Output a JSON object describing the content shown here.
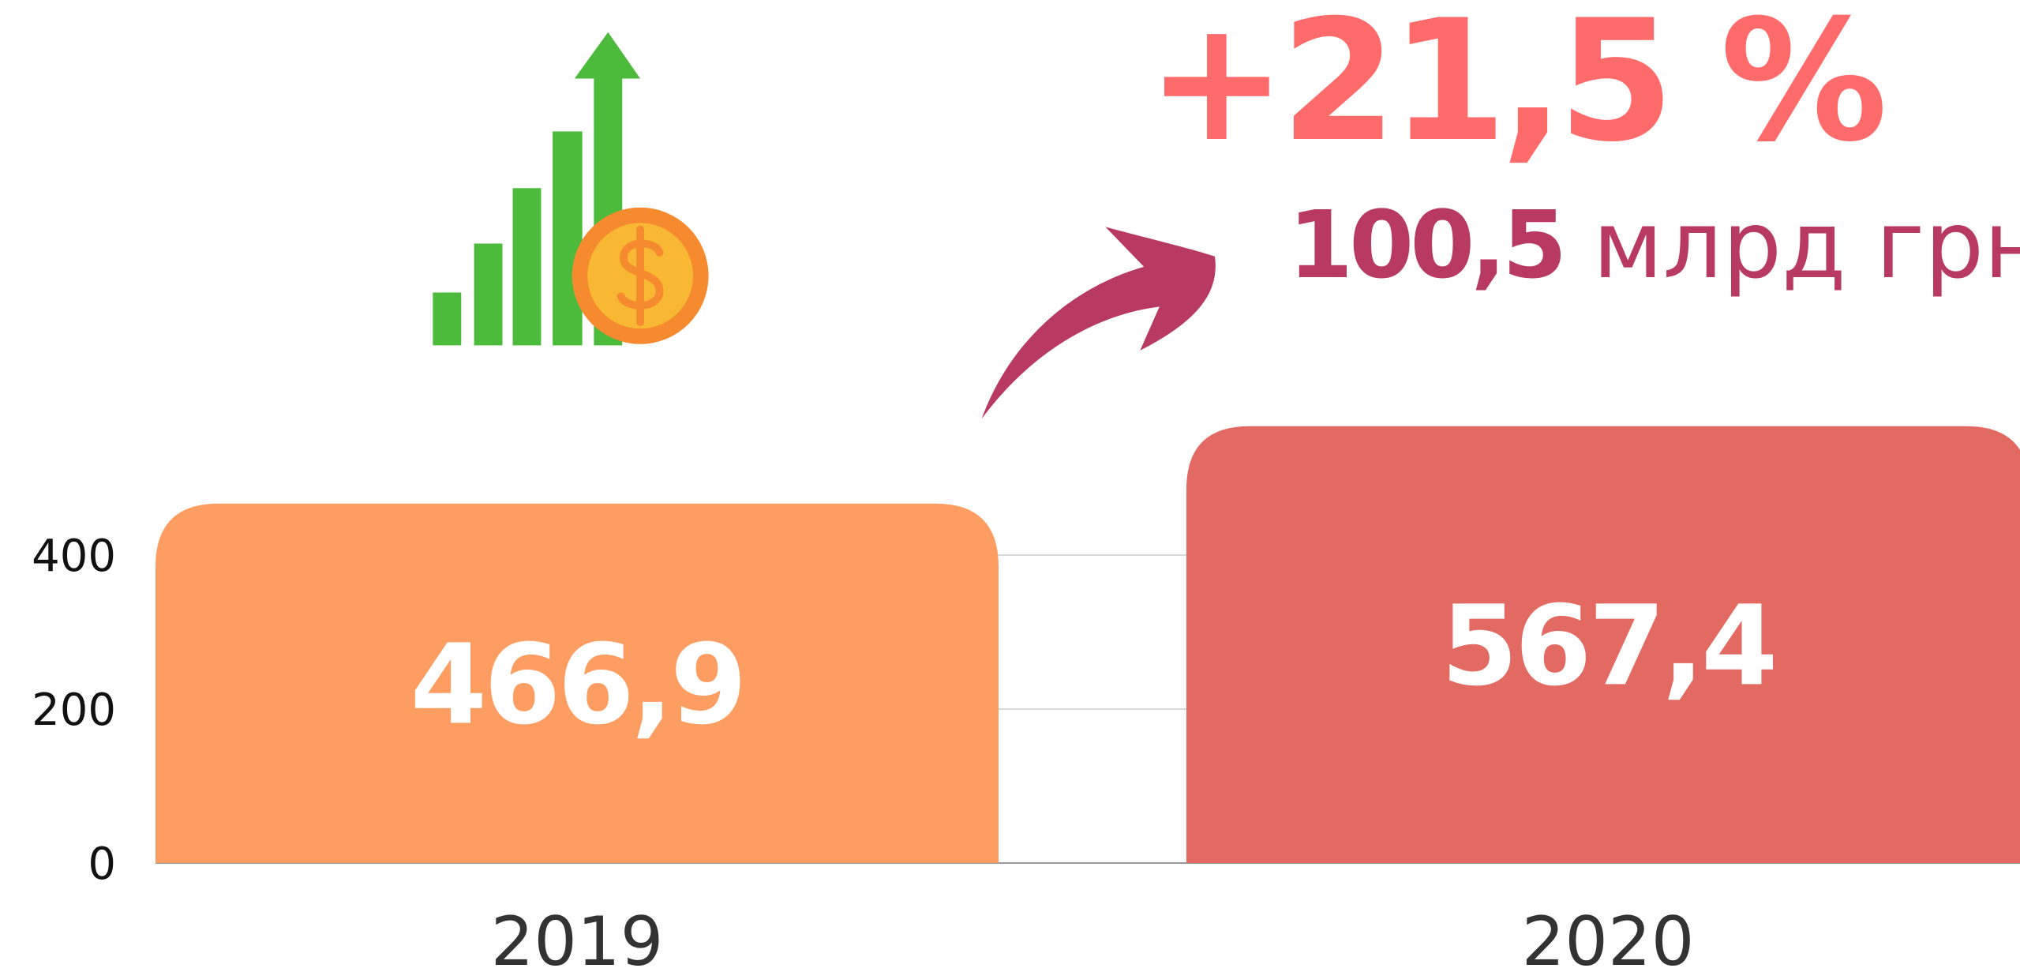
{
  "chart_data": {
    "type": "bar",
    "categories": [
      "2019",
      "2020"
    ],
    "values": [
      466.9,
      567.4
    ],
    "value_labels": [
      "466,9",
      "567,4"
    ],
    "colors": [
      "#fe9d62",
      "#e26a62"
    ],
    "ylim": [
      0,
      600
    ],
    "yticks": [
      0,
      200,
      400
    ],
    "grid": true,
    "annotations": {
      "change": "+21,5 %",
      "amount": "100,5",
      "unit": "млрд грн"
    }
  }
}
